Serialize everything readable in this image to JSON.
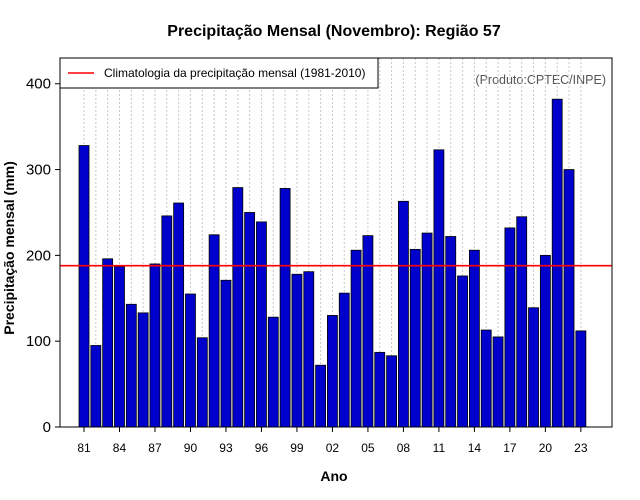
{
  "colors": {
    "bar_fill": "#0000CD",
    "bar_stroke": "#000000",
    "climatology_line": "#FF0000",
    "grid": "#C8C8C8",
    "credit_text": "#555555"
  },
  "chart_data": {
    "type": "bar",
    "title": "Precipitação Mensal (Novembro): Região 57",
    "xlabel": "Ano",
    "ylabel": "Precipitação mensal (mm)",
    "ylim": [
      0,
      430
    ],
    "yticks": [
      0,
      100,
      200,
      300,
      400
    ],
    "credit": "(Produto:CPTEC/INPE)",
    "legend": {
      "label": "Climatologia da precipitação mensal (1981-2010)",
      "position": "top-left"
    },
    "climatology": 188,
    "categories": [
      "81",
      "82",
      "83",
      "84",
      "85",
      "86",
      "87",
      "88",
      "89",
      "90",
      "91",
      "92",
      "93",
      "94",
      "95",
      "96",
      "97",
      "98",
      "99",
      "00",
      "01",
      "02",
      "03",
      "04",
      "05",
      "06",
      "07",
      "08",
      "09",
      "10",
      "11",
      "12",
      "13",
      "14",
      "15",
      "16",
      "17",
      "18",
      "19",
      "20",
      "21",
      "22",
      "23"
    ],
    "tick_labels": [
      "81",
      "84",
      "87",
      "90",
      "93",
      "96",
      "99",
      "02",
      "05",
      "08",
      "11",
      "14",
      "17",
      "20",
      "23"
    ],
    "values": [
      328,
      95,
      196,
      187,
      143,
      133,
      190,
      246,
      261,
      155,
      104,
      224,
      171,
      279,
      250,
      239,
      128,
      278,
      178,
      181,
      72,
      130,
      156,
      206,
      223,
      87,
      83,
      263,
      207,
      226,
      323,
      222,
      176,
      206,
      113,
      105,
      232,
      245,
      139,
      200,
      382,
      300,
      112
    ]
  }
}
